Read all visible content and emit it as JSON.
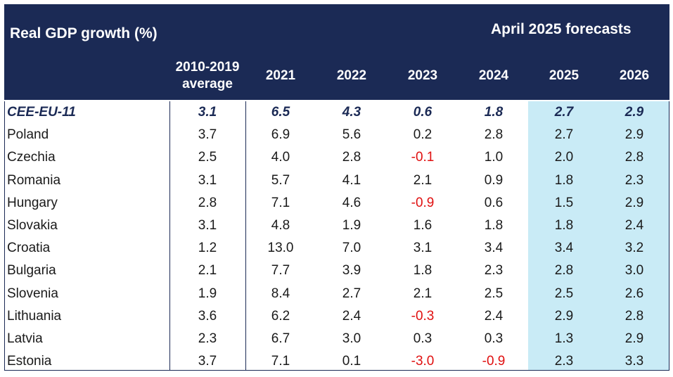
{
  "header": {
    "title": "Real GDP growth (%)",
    "forecast_label": "April 2025 forecasts"
  },
  "colors": {
    "header_bg": "#1b2a55",
    "forecast_bg": "#c9ebf6",
    "negative": "#e01010"
  },
  "chart_data": {
    "type": "table",
    "title": "Real GDP growth (%)",
    "columns": [
      "2010-2019 average",
      "2021",
      "2022",
      "2023",
      "2024",
      "2025",
      "2026"
    ],
    "forecast_columns": [
      "2025",
      "2026"
    ],
    "rows": [
      {
        "name": "CEE-EU-11",
        "values": [
          "3.1",
          "6.5",
          "4.3",
          "0.6",
          "1.8",
          "2.7",
          "2.9"
        ],
        "total": true
      },
      {
        "name": "Poland",
        "values": [
          "3.7",
          "6.9",
          "5.6",
          "0.2",
          "2.8",
          "2.7",
          "2.9"
        ]
      },
      {
        "name": "Czechia",
        "values": [
          "2.5",
          "4.0",
          "2.8",
          "-0.1",
          "1.0",
          "2.0",
          "2.8"
        ]
      },
      {
        "name": "Romania",
        "values": [
          "3.1",
          "5.7",
          "4.1",
          "2.1",
          "0.9",
          "1.8",
          "2.3"
        ]
      },
      {
        "name": "Hungary",
        "values": [
          "2.8",
          "7.1",
          "4.6",
          "-0.9",
          "0.6",
          "1.5",
          "2.9"
        ]
      },
      {
        "name": "Slovakia",
        "values": [
          "3.1",
          "4.8",
          "1.9",
          "1.6",
          "1.8",
          "1.8",
          "2.4"
        ]
      },
      {
        "name": "Croatia",
        "values": [
          "1.2",
          "13.0",
          "7.0",
          "3.1",
          "3.4",
          "3.4",
          "3.2"
        ]
      },
      {
        "name": "Bulgaria",
        "values": [
          "2.1",
          "7.7",
          "3.9",
          "1.8",
          "2.3",
          "2.8",
          "3.0"
        ]
      },
      {
        "name": "Slovenia",
        "values": [
          "1.9",
          "8.4",
          "2.7",
          "2.1",
          "2.5",
          "2.5",
          "2.6"
        ]
      },
      {
        "name": "Lithuania",
        "values": [
          "3.6",
          "6.2",
          "2.4",
          "-0.3",
          "2.4",
          "2.9",
          "2.8"
        ]
      },
      {
        "name": "Latvia",
        "values": [
          "2.3",
          "6.7",
          "3.0",
          "0.3",
          "0.3",
          "1.3",
          "2.9"
        ]
      },
      {
        "name": "Estonia",
        "values": [
          "3.7",
          "7.1",
          "0.1",
          "-3.0",
          "-0.9",
          "2.3",
          "3.3"
        ]
      }
    ]
  }
}
